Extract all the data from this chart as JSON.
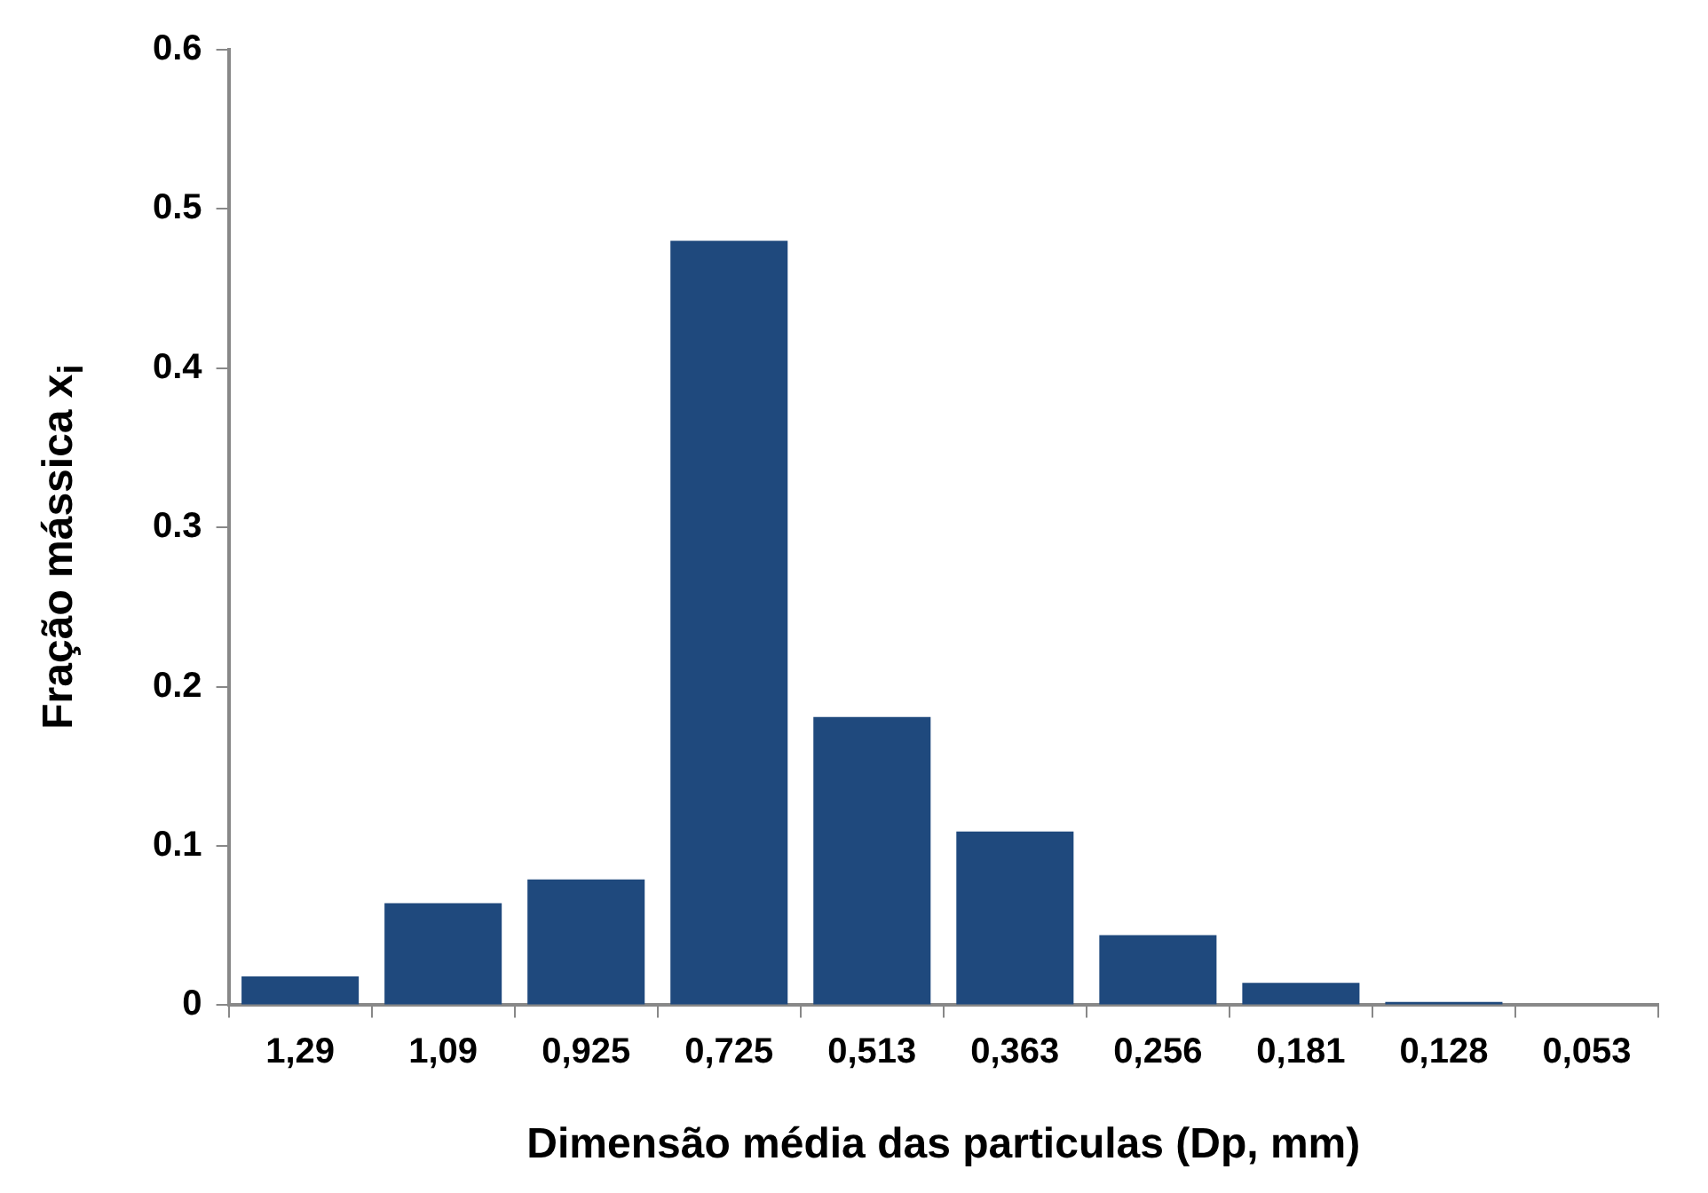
{
  "chart_data": {
    "type": "bar",
    "xlabel": "Dimensão média das particulas (Dp, mm)",
    "ylabel": "Fração mássica x$_{i}$",
    "categories": [
      "1,29",
      "1,09",
      "0,925",
      "0,725",
      "0,513",
      "0,363",
      "0,256",
      "0,181",
      "0,128",
      "0,053"
    ],
    "values": [
      0.018,
      0.064,
      0.079,
      0.48,
      0.181,
      0.109,
      0.044,
      0.014,
      0.002,
      0
    ],
    "color": "#1f497d",
    "ylim": [
      0,
      0.6
    ],
    "yticks": [
      0,
      0.1,
      0.2,
      0.3,
      0.4,
      0.5,
      0.6
    ],
    "grid": false,
    "legend": false
  }
}
